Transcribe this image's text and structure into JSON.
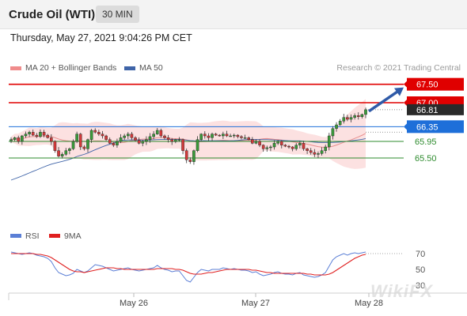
{
  "header": {
    "instrument": "Crude Oil (WTI)",
    "timeframe": "30 MIN"
  },
  "timestamp": "Thursday, May 27, 2021 9:04:26 PM CET",
  "legend": [
    {
      "label": "MA 20 + Bollinger Bands",
      "color": "#f08c8c"
    },
    {
      "label": "MA 50",
      "color": "#3f64a8"
    }
  ],
  "copyright": "Research © 2021 Trading Central",
  "brand": "WikiFX",
  "chart_data": {
    "type": "candlestick",
    "price_levels": [
      {
        "value": 67.5,
        "label": "67.50",
        "kind": "resistance",
        "color": "#e00000"
      },
      {
        "value": 67.0,
        "label": "67.00",
        "kind": "resistance",
        "color": "#e00000"
      },
      {
        "value": 66.35,
        "label": "66.35",
        "kind": "pivot",
        "color": "#1e6fd9"
      },
      {
        "value": 65.95,
        "label": "65.95",
        "kind": "support",
        "color": "#2e8b2e"
      },
      {
        "value": 65.5,
        "label": "65.50",
        "kind": "support",
        "color": "#2e8b2e"
      }
    ],
    "last_price": {
      "value": 66.81,
      "label": "66.81"
    },
    "ma50_last": 66.35,
    "ylim": [
      64.75,
      67.75
    ],
    "x_ticks": [
      "May 26",
      "May 27",
      "May 28"
    ],
    "close": [
      66.0,
      66.05,
      65.95,
      66.1,
      66.15,
      66.2,
      66.12,
      66.08,
      66.2,
      66.12,
      66.05,
      65.95,
      65.7,
      65.55,
      65.6,
      65.7,
      65.75,
      65.95,
      66.15,
      65.8,
      65.75,
      66.0,
      66.25,
      66.2,
      66.15,
      66.1,
      66.0,
      65.9,
      65.85,
      65.95,
      66.05,
      66.1,
      66.15,
      66.05,
      65.98,
      65.9,
      65.95,
      66.0,
      66.08,
      66.15,
      66.25,
      66.1,
      66.05,
      66.0,
      65.95,
      66.0,
      66.0,
      65.7,
      65.45,
      65.4,
      65.7,
      66.0,
      66.15,
      66.1,
      66.05,
      66.15,
      66.12,
      66.1,
      66.15,
      66.1,
      66.1,
      66.12,
      66.08,
      66.05,
      66.05,
      66.0,
      65.9,
      65.95,
      65.85,
      65.75,
      65.78,
      65.8,
      65.9,
      65.95,
      65.85,
      65.82,
      65.8,
      65.75,
      65.85,
      65.9,
      65.75,
      65.7,
      65.65,
      65.6,
      65.62,
      65.7,
      65.8,
      66.1,
      66.3,
      66.4,
      66.5,
      66.6,
      66.55,
      66.6,
      66.65,
      66.62,
      66.68,
      66.81
    ],
    "rsi_series": {
      "name": "RSI",
      "color": "#5b7fd6"
    },
    "rsi_ma_series": {
      "name": "9MA",
      "color": "#e02020"
    },
    "rsi_levels": [
      70,
      50,
      30
    ],
    "rsi": [
      72,
      71,
      70,
      69,
      70,
      71,
      70,
      68,
      67,
      66,
      64,
      60,
      52,
      46,
      44,
      42,
      43,
      45,
      50,
      48,
      46,
      48,
      52,
      56,
      55,
      54,
      52,
      50,
      48,
      49,
      50,
      51,
      52,
      50,
      49,
      48,
      49,
      50,
      51,
      52,
      55,
      52,
      50,
      49,
      47,
      48,
      48,
      42,
      36,
      34,
      40,
      46,
      50,
      49,
      48,
      50,
      50,
      50,
      52,
      51,
      50,
      51,
      50,
      49,
      49,
      48,
      46,
      47,
      44,
      42,
      43,
      44,
      46,
      47,
      45,
      44,
      44,
      43,
      45,
      46,
      43,
      42,
      41,
      40,
      41,
      43,
      46,
      54,
      62,
      66,
      68,
      70,
      68,
      70,
      71,
      70,
      71,
      72
    ],
    "rsi_ma": [
      70,
      70,
      70,
      70,
      70,
      70,
      70,
      69,
      69,
      68,
      67,
      65,
      62,
      59,
      56,
      53,
      50,
      48,
      47,
      47,
      46,
      47,
      48,
      49,
      50,
      51,
      52,
      52,
      52,
      51,
      51,
      50,
      50,
      50,
      50,
      50,
      50,
      50,
      50,
      50,
      51,
      51,
      51,
      51,
      51,
      50,
      50,
      49,
      47,
      45,
      44,
      44,
      44,
      45,
      46,
      46,
      47,
      48,
      49,
      50,
      50,
      50,
      50,
      50,
      50,
      50,
      49,
      49,
      48,
      47,
      46,
      46,
      45,
      45,
      45,
      45,
      45,
      45,
      45,
      45,
      45,
      44,
      44,
      43,
      43,
      43,
      43,
      44,
      46,
      49,
      52,
      55,
      58,
      61,
      64,
      66,
      68,
      69
    ]
  }
}
